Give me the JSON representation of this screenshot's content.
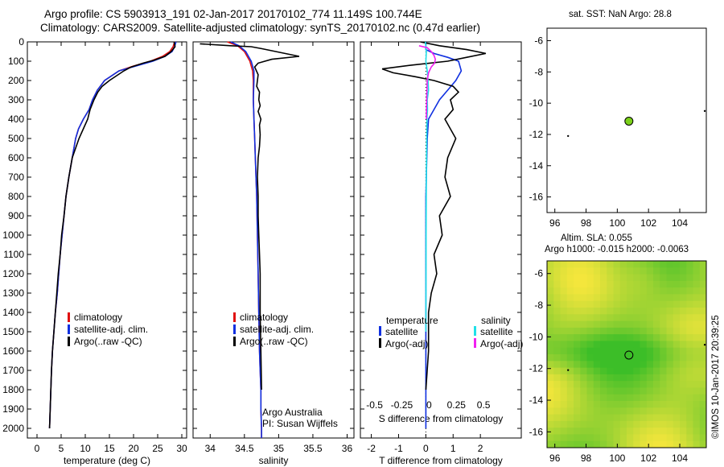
{
  "header": {
    "line1": "Argo profile: CS 5903913_191 02-Jan-2017 20170102_774 11.149S 100.744E",
    "line2": "Climatology: CARS2009. Satellite-adjusted climatology: synTS_20170102.nc (0.47d earlier)"
  },
  "stamp": "©IMOS 10-Jan-2017 20:39:25",
  "colors": {
    "climatology": "#e01010",
    "satellite": "#1030e0",
    "argo": "#000000",
    "sal_sat": "#20e0e8",
    "sal_argo": "#f020f0",
    "marker": "#7bd11a",
    "land": "#f5b895"
  },
  "chart_data": [
    {
      "type": "line",
      "xlabel": "temperature (deg C)",
      "xlim": [
        -2,
        31
      ],
      "xticks": [
        0,
        5,
        10,
        15,
        20,
        25,
        30
      ],
      "ylim": [
        0,
        2050
      ],
      "yticks": [
        0,
        100,
        200,
        300,
        400,
        500,
        600,
        700,
        800,
        900,
        1000,
        1100,
        1200,
        1300,
        1400,
        1500,
        1600,
        1700,
        1800,
        1900,
        2000
      ],
      "legend": [
        "climatology",
        "satellite-adj. clim.",
        "Argo(..raw -QC)"
      ],
      "series": [
        {
          "name": "climatology",
          "x": [
            28.5,
            28.2,
            27.5,
            26,
            23.5,
            20,
            17,
            14,
            12.5,
            11.5,
            10.8,
            9.6,
            8.6,
            8,
            7.3,
            6.6,
            6,
            5.6,
            5.2,
            4.8,
            4.5,
            4.2,
            3.8,
            3.5,
            3.2,
            3,
            2.8,
            2.6
          ],
          "y": [
            0,
            25,
            50,
            75,
            100,
            125,
            150,
            200,
            250,
            300,
            350,
            400,
            450,
            500,
            600,
            700,
            800,
            900,
            1000,
            1100,
            1200,
            1300,
            1400,
            1500,
            1600,
            1700,
            1850,
            2000
          ]
        },
        {
          "name": "satellite-adj. clim.",
          "x": [
            28.8,
            28.5,
            28,
            26.5,
            24,
            20.5,
            17,
            14,
            12.5,
            11.5,
            10.8,
            9.6,
            8.6,
            8,
            7.3,
            6.6,
            6,
            5.6,
            5.2,
            4.8,
            4.5,
            4.2,
            3.8,
            3.5,
            3.2,
            3,
            2.8,
            2.6
          ],
          "y": [
            0,
            25,
            50,
            75,
            100,
            125,
            150,
            200,
            250,
            300,
            350,
            400,
            450,
            500,
            600,
            700,
            800,
            900,
            1000,
            1100,
            1200,
            1300,
            1400,
            1500,
            1600,
            1700,
            1850,
            2000
          ]
        },
        {
          "name": "Argo(..raw -QC)",
          "x": [
            28.4,
            28.6,
            27.8,
            26.5,
            24.2,
            22,
            19.5,
            18,
            16.5,
            15,
            13.5,
            12.6,
            11.8,
            11,
            10.5,
            9.6,
            8.7,
            8,
            7.3,
            6.6,
            6,
            5.6,
            5.1,
            4.8,
            4.4,
            4.1,
            3.8,
            3.5,
            3.2,
            3,
            2.8,
            2.6
          ],
          "y": [
            0,
            25,
            50,
            75,
            95,
            110,
            130,
            150,
            175,
            200,
            230,
            260,
            300,
            350,
            400,
            450,
            500,
            550,
            600,
            700,
            800,
            900,
            1000,
            1100,
            1200,
            1300,
            1400,
            1500,
            1600,
            1700,
            1850,
            2000
          ]
        }
      ]
    },
    {
      "type": "line",
      "xlabel": "salinity",
      "xlim": [
        33.75,
        36.1
      ],
      "xticks": [
        34,
        34.5,
        35,
        35.5,
        36
      ],
      "ylim": [
        0,
        2050
      ],
      "legend": [
        "climatology",
        "satellite-adj. clim.",
        "Argo(..raw -QC)"
      ],
      "annotations": [
        "Argo Australia",
        "PI: Susan Wijffels"
      ],
      "series": [
        {
          "name": "climatology",
          "x": [
            34.25,
            34.4,
            34.5,
            34.58,
            34.62,
            34.63,
            34.63,
            34.64,
            34.65,
            34.66,
            34.68,
            34.69,
            34.7,
            34.71,
            34.72,
            34.73,
            34.74,
            34.74,
            34.75,
            34.75
          ],
          "y": [
            0,
            20,
            50,
            100,
            150,
            200,
            300,
            400,
            500,
            600,
            800,
            1000,
            1200,
            1400,
            1600,
            1700,
            1800,
            1900,
            2000,
            2050
          ]
        },
        {
          "name": "satellite-adj. clim.",
          "x": [
            34.3,
            34.42,
            34.52,
            34.6,
            34.64,
            34.64,
            34.63,
            34.64,
            34.65,
            34.66,
            34.68,
            34.69,
            34.7,
            34.71,
            34.72,
            34.73,
            34.74,
            34.74,
            34.75,
            34.75
          ],
          "y": [
            0,
            20,
            50,
            100,
            150,
            200,
            300,
            400,
            500,
            600,
            800,
            1000,
            1200,
            1400,
            1600,
            1700,
            1800,
            1900,
            2000,
            2050
          ]
        },
        {
          "name": "Argo(..raw -QC)",
          "x": [
            33.85,
            34.3,
            34.6,
            34.75,
            35.3,
            34.9,
            34.7,
            34.65,
            34.7,
            34.68,
            34.72,
            34.71,
            34.73,
            34.7,
            34.74,
            34.72,
            34.73,
            34.72,
            34.7,
            34.69,
            34.7,
            34.7,
            34.71,
            34.72,
            34.73,
            34.73,
            34.74,
            34.75
          ],
          "y": [
            10,
            20,
            25,
            35,
            75,
            90,
            110,
            130,
            170,
            230,
            260,
            300,
            330,
            360,
            400,
            430,
            480,
            540,
            600,
            700,
            800,
            900,
            1000,
            1100,
            1200,
            1400,
            1600,
            1800
          ]
        }
      ]
    },
    {
      "type": "line",
      "xlabel": "T difference from climatology",
      "xlabel_top": "S difference from climatology",
      "xlim": [
        -2.4,
        3.5
      ],
      "xticks": [
        -2,
        -1,
        0,
        1,
        2
      ],
      "xticks_top": [
        "-0.5",
        "-0.25",
        "0",
        "0.25",
        "0.5"
      ],
      "ylim": [
        0,
        2050
      ],
      "legend": [
        {
          "group": "temperature",
          "items": [
            "satellite",
            "Argo(-adj)"
          ]
        },
        {
          "group": "salinity",
          "items": [
            "satellite",
            "Argo(-adj)"
          ]
        }
      ],
      "series": [
        {
          "name": "temperature satellite",
          "x": [
            0,
            0,
            0.3,
            0.8,
            1.2,
            1.3,
            1.1,
            0.8,
            0.5,
            0.3,
            0.1,
            0.05,
            0,
            0,
            0
          ],
          "y": [
            0,
            40,
            60,
            80,
            100,
            150,
            200,
            250,
            300,
            350,
            400,
            500,
            800,
            1200,
            2000
          ]
        },
        {
          "name": "temperature Argo(-adj)",
          "x": [
            -0.2,
            0.5,
            1.5,
            2.2,
            1.5,
            0.8,
            -0.5,
            -1.6,
            -1.2,
            -0.4,
            0.3,
            1,
            1.2,
            0.9,
            1,
            0.7,
            1.1,
            0.8,
            0.7,
            0.9,
            0.5,
            0.6,
            0.3,
            0.4,
            0.2,
            0.1,
            0.1,
            0
          ],
          "y": [
            0,
            20,
            40,
            60,
            80,
            100,
            120,
            140,
            160,
            180,
            200,
            230,
            260,
            300,
            350,
            400,
            500,
            600,
            700,
            800,
            900,
            1000,
            1100,
            1200,
            1300,
            1400,
            1600,
            1800
          ]
        },
        {
          "name": "salinity satellite",
          "x": [
            -0.02,
            0.02,
            0,
            0.05,
            0.08,
            0.1,
            0.05,
            0.06,
            0.04,
            0.03,
            0.02,
            0.01,
            0
          ],
          "y": [
            0,
            50,
            100,
            150,
            200,
            250,
            300,
            350,
            400,
            500,
            700,
            1000,
            1500
          ]
        },
        {
          "name": "salinity Argo(-adj)",
          "x": [
            -0.25,
            0.05,
            0.2,
            0.3,
            0.35,
            0.32,
            0.2,
            0.1,
            0.05,
            0.03,
            0.02
          ],
          "y": [
            20,
            30,
            50,
            70,
            90,
            110,
            130,
            160,
            200,
            300,
            400
          ]
        }
      ]
    },
    {
      "type": "scatter",
      "title": "sat. SST: NaN Argo: 28.8",
      "xlim": [
        95.5,
        105.7
      ],
      "ylim": [
        -17,
        -5.2
      ],
      "xticks": [
        96,
        98,
        100,
        102,
        104
      ],
      "yticks": [
        -6,
        -8,
        -10,
        -12,
        -14,
        -16
      ],
      "points": [
        {
          "x": 100.744,
          "y": -11.149
        }
      ]
    },
    {
      "type": "heatmap",
      "title": "Altim. SLA: 0.055",
      "subtitle": "Argo h1000: -0.015 h2000: -0.0063",
      "xlim": [
        95.5,
        105.7
      ],
      "ylim": [
        -17,
        -5.2
      ],
      "xticks": [
        96,
        98,
        100,
        102,
        104
      ],
      "yticks": [
        -6,
        -8,
        -10,
        -12,
        -14,
        -16
      ],
      "points": [
        {
          "x": 100.744,
          "y": -11.149
        }
      ]
    }
  ]
}
